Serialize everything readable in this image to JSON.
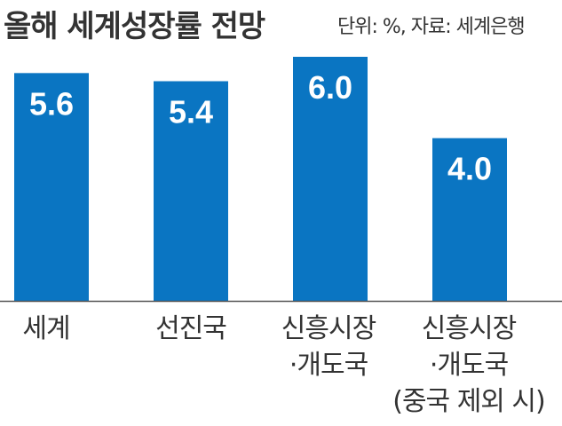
{
  "header": {
    "title": "올해 세계성장률 전망",
    "unit": "단위: %, 자료: 세계은행"
  },
  "colors": {
    "bar": "#0A75C2",
    "axis": "#555555"
  },
  "chart_data": {
    "type": "bar",
    "title": "올해 세계성장률 전망",
    "xlabel": "",
    "ylabel": "",
    "categories": [
      [
        "세계"
      ],
      [
        "선진국"
      ],
      [
        "신흥시장",
        "·개도국"
      ],
      [
        "신흥시장",
        "·개도국",
        "(중국 제외 시)"
      ]
    ],
    "values": [
      5.6,
      5.4,
      6.0,
      4.0
    ],
    "value_labels": [
      "5.6",
      "5.4",
      "6.0",
      "4.0"
    ],
    "ylim": [
      0,
      6.0
    ],
    "grid": false,
    "legend": "none"
  }
}
